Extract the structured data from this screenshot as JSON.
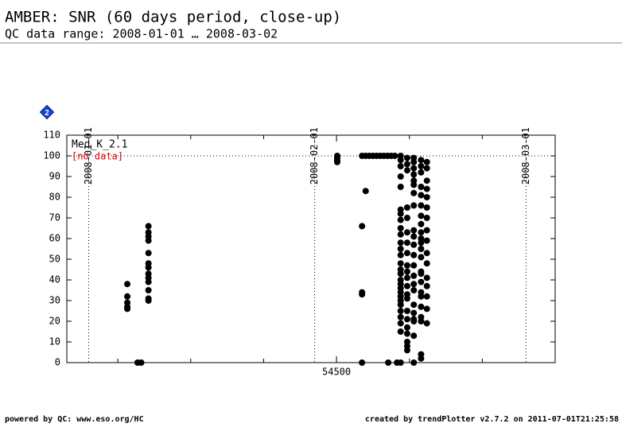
{
  "chart_data": {
    "type": "scatter",
    "title": "AMBER: SNR (60 days period, close-up)",
    "subtitle": "QC data range: 2008-01-01 … 2008-03-02",
    "badge": "2",
    "legend": [
      "Med_K_2.1",
      "[no data]"
    ],
    "footer_left": "powered by QC: www.eso.org/HC",
    "footer_right": "created by trendPlotter v2.7.2 on 2011-07-01T21:25:58",
    "xlim": [
      54463,
      54530
    ],
    "xticks": [
      54500
    ],
    "xminor_ticks": [
      54470,
      54480,
      54490,
      54510,
      54520
    ],
    "ylim": [
      0,
      110
    ],
    "yticks": [
      0,
      10,
      20,
      30,
      40,
      50,
      60,
      70,
      80,
      90,
      100,
      110
    ],
    "hline": 100,
    "date_lines": [
      {
        "label": "2008-01-01",
        "x": 54466
      },
      {
        "label": "2008-02-01",
        "x": 54497
      },
      {
        "label": "2008-03-01",
        "x": 54526
      }
    ],
    "series": [
      {
        "name": "Med_K_2.1",
        "color": "#000000",
        "x": [
          54471.3,
          54471.3,
          54471.3,
          54471.3,
          54471.3,
          54472.7,
          54473.2,
          54474.2,
          54474.2,
          54474.2,
          54474.2,
          54474.2,
          54474.2,
          54474.2,
          54474.2,
          54474.2,
          54474.2,
          54474.2,
          54474.2,
          54474.2,
          54500.1,
          54500.1,
          54500.1,
          54500.1,
          54503.5,
          54503.5,
          54503.5,
          54503.5,
          54503.5,
          54504.0,
          54504.0,
          54504.5,
          54505,
          54505.5,
          54506,
          54506.5,
          54507,
          54507.5,
          54508,
          54507.1,
          54508.3,
          54508.8,
          54508.8,
          54508.8,
          54508.8,
          54508.8,
          54508.8,
          54508.8,
          54508.8,
          54508.8,
          54508.8,
          54508.8,
          54508.8,
          54508.8,
          54508.8,
          54508.8,
          54508.8,
          54508.8,
          54508.8,
          54508.8,
          54508.8,
          54508.8,
          54508.8,
          54508.8,
          54508.8,
          54508.8,
          54508.8,
          54508.8,
          54508.8,
          54509.7,
          54509.7,
          54509.7,
          54509.7,
          54509.7,
          54509.7,
          54509.7,
          54509.7,
          54509.7,
          54509.7,
          54509.7,
          54509.7,
          54509.7,
          54509.7,
          54509.7,
          54509.7,
          54509.7,
          54509.7,
          54509.7,
          54509.7,
          54509.7,
          54510.6,
          54510.6,
          54510.6,
          54510.6,
          54510.6,
          54510.6,
          54510.6,
          54510.6,
          54510.6,
          54510.6,
          54510.6,
          54510.6,
          54510.6,
          54510.6,
          54510.6,
          54510.6,
          54510.6,
          54510.6,
          54510.6,
          54510.6,
          54510.6,
          54510.6,
          54511.6,
          54511.6,
          54511.6,
          54511.6,
          54511.6,
          54511.6,
          54511.6,
          54511.6,
          54511.6,
          54511.6,
          54511.6,
          54511.6,
          54511.6,
          54511.6,
          54511.6,
          54511.6,
          54511.6,
          54511.6,
          54511.6,
          54511.6,
          54511.6,
          54511.6,
          54511.6,
          54512.4,
          54512.4,
          54512.4,
          54512.4,
          54512.4,
          54512.4,
          54512.4,
          54512.4,
          54512.4,
          54512.4,
          54512.4,
          54512.4,
          54512.4,
          54512.4,
          54512.4,
          54512.4
        ],
        "values": [
          38,
          32,
          29,
          27,
          26,
          0,
          0,
          66,
          63,
          61,
          59,
          53,
          48,
          46,
          43,
          41,
          39,
          35,
          31,
          30,
          100,
          99,
          98,
          97,
          100,
          66,
          34,
          33,
          0,
          100,
          83,
          100,
          100,
          100,
          100,
          100,
          100,
          100,
          100,
          0,
          0,
          100,
          98,
          95,
          90,
          85,
          74,
          72,
          69,
          65,
          62,
          58,
          55,
          52,
          48,
          45,
          43,
          40,
          38,
          36,
          34,
          32,
          30,
          28,
          25,
          22,
          19,
          15,
          0,
          99,
          96,
          93,
          75,
          70,
          63,
          58,
          53,
          47,
          44,
          41,
          37,
          33,
          31,
          25,
          21,
          17,
          14,
          10,
          8,
          6,
          99,
          97,
          94,
          91,
          88,
          86,
          82,
          76,
          64,
          61,
          57,
          52,
          47,
          42,
          38,
          35,
          28,
          24,
          21,
          20,
          13,
          0,
          98,
          95,
          92,
          85,
          81,
          76,
          71,
          67,
          63,
          60,
          58,
          55,
          51,
          44,
          43,
          39,
          34,
          32,
          27,
          22,
          20,
          4,
          2,
          97,
          94,
          88,
          84,
          80,
          75,
          70,
          64,
          59,
          53,
          48,
          41,
          37,
          32,
          26,
          19
        ]
      }
    ]
  }
}
